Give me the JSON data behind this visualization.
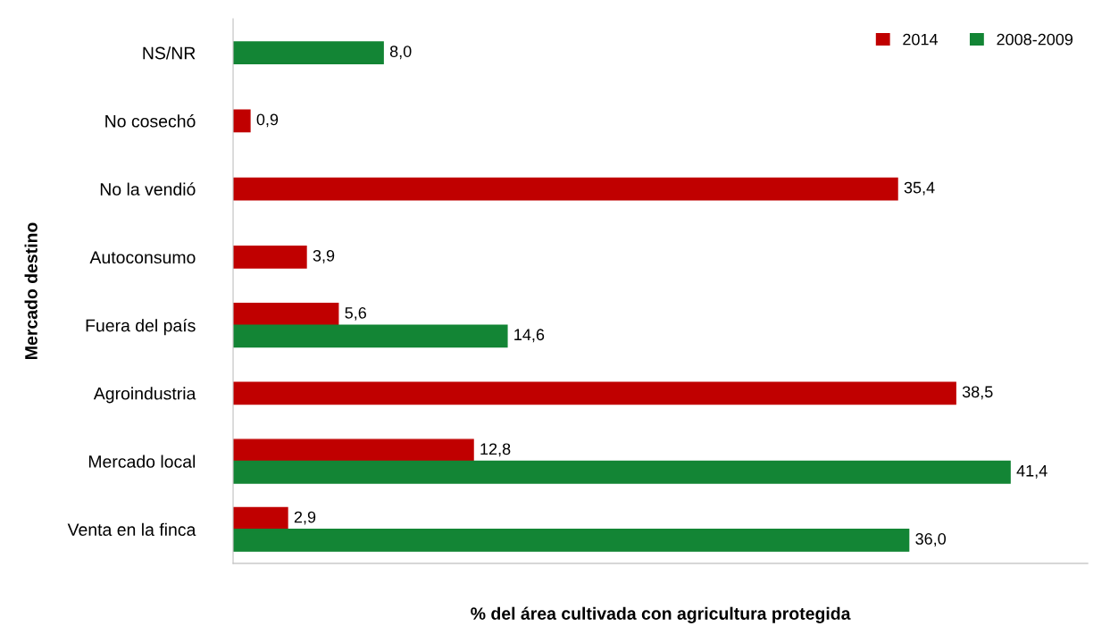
{
  "chart_data": {
    "type": "bar",
    "orientation": "horizontal",
    "xlabel": "% del área cultivada con agricultura protegida",
    "ylabel": "Mercado destino",
    "categories": [
      "NS/NR",
      "No cosechó",
      "No la vendió",
      "Autoconsumo",
      "Fuera del país",
      "Agroindustria",
      "Mercado local",
      "Venta en la finca"
    ],
    "series": [
      {
        "name": "2014",
        "color": "#c00000",
        "values": [
          null,
          0.9,
          35.4,
          3.9,
          5.6,
          38.5,
          12.8,
          2.9
        ],
        "value_labels": [
          null,
          "0,9",
          "35,4",
          "3,9",
          "5,6",
          "38,5",
          "12,8",
          "2,9"
        ]
      },
      {
        "name": "2008-2009",
        "color": "#138535",
        "values": [
          8.0,
          null,
          null,
          null,
          14.6,
          null,
          41.4,
          36.0
        ],
        "value_labels": [
          "8,0",
          null,
          null,
          null,
          "14,6",
          null,
          "41,4",
          "36,0"
        ]
      }
    ],
    "legend": "top right",
    "grid": false,
    "tick_labels": "y"
  }
}
